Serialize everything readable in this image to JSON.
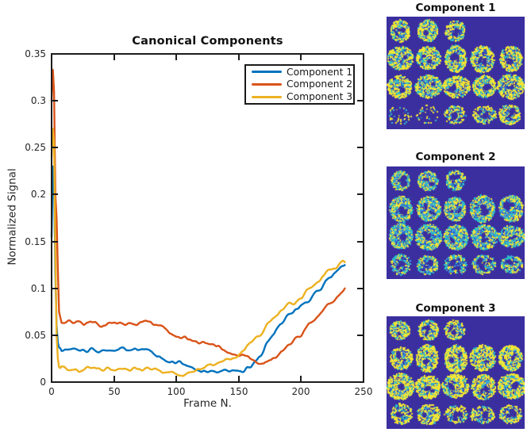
{
  "chart_data": {
    "type": "line",
    "title": "Canonical Components",
    "xlabel": "Frame N.",
    "ylabel": "Normalized Signal",
    "xlim": [
      0,
      250
    ],
    "ylim": [
      0,
      0.35
    ],
    "xticks": [
      0,
      50,
      100,
      150,
      200,
      250
    ],
    "xtick_labels": [
      "0",
      "50",
      "100",
      "150",
      "200",
      "250"
    ],
    "yticks": [
      0,
      0.05,
      0.1,
      0.15,
      0.2,
      0.25,
      0.3,
      0.35
    ],
    "ytick_labels": [
      "0",
      "0.05",
      "0.1",
      "0.15",
      "0.2",
      "0.25",
      "0.3",
      "0.35"
    ],
    "grid": false,
    "legend_position": "top-right-inside",
    "axis_color": "#1c1c1c",
    "text_color": "#262626",
    "series": [
      {
        "name": "Component 1",
        "color": "#0072BD",
        "x": [
          0,
          1,
          2,
          3,
          4,
          5,
          6,
          8,
          10,
          15,
          20,
          25,
          30,
          35,
          40,
          45,
          50,
          55,
          60,
          65,
          70,
          75,
          80,
          85,
          90,
          95,
          100,
          105,
          110,
          115,
          120,
          125,
          130,
          135,
          140,
          145,
          150,
          155,
          160,
          165,
          170,
          175,
          180,
          185,
          190,
          195,
          200,
          205,
          210,
          215,
          220,
          225,
          230,
          235
        ],
        "y": [
          0.155,
          0.23,
          0.22,
          0.12,
          0.06,
          0.042,
          0.037,
          0.035,
          0.034,
          0.0335,
          0.0345,
          0.033,
          0.0345,
          0.034,
          0.0335,
          0.035,
          0.034,
          0.0345,
          0.033,
          0.034,
          0.0345,
          0.034,
          0.031,
          0.028,
          0.0255,
          0.023,
          0.0205,
          0.018,
          0.016,
          0.0145,
          0.0135,
          0.0125,
          0.012,
          0.012,
          0.0125,
          0.013,
          0.0135,
          0.015,
          0.018,
          0.023,
          0.031,
          0.046,
          0.055,
          0.063,
          0.07,
          0.076,
          0.08,
          0.0855,
          0.092,
          0.0995,
          0.107,
          0.113,
          0.119,
          0.126
        ]
      },
      {
        "name": "Component 2",
        "color": "#D95319",
        "x": [
          0,
          1,
          2,
          3,
          4,
          5,
          6,
          8,
          10,
          15,
          20,
          25,
          30,
          35,
          40,
          45,
          50,
          55,
          60,
          65,
          70,
          75,
          80,
          85,
          90,
          95,
          100,
          105,
          110,
          115,
          120,
          125,
          130,
          135,
          140,
          145,
          150,
          155,
          160,
          165,
          170,
          175,
          180,
          185,
          190,
          195,
          200,
          205,
          210,
          215,
          220,
          225,
          230,
          235
        ],
        "y": [
          0.3,
          0.333,
          0.31,
          0.2,
          0.175,
          0.12,
          0.075,
          0.063,
          0.0625,
          0.063,
          0.0635,
          0.062,
          0.064,
          0.063,
          0.0625,
          0.0635,
          0.063,
          0.064,
          0.0625,
          0.063,
          0.0635,
          0.0625,
          0.0615,
          0.059,
          0.056,
          0.052,
          0.048,
          0.0455,
          0.044,
          0.0425,
          0.0415,
          0.04,
          0.0385,
          0.0365,
          0.0345,
          0.0325,
          0.03,
          0.0275,
          0.024,
          0.019,
          0.016,
          0.0225,
          0.027,
          0.033,
          0.04,
          0.046,
          0.052,
          0.058,
          0.064,
          0.071,
          0.077,
          0.084,
          0.092,
          0.1
        ]
      },
      {
        "name": "Component 3",
        "color": "#EDB120",
        "x": [
          0,
          1,
          2,
          3,
          4,
          5,
          6,
          8,
          10,
          15,
          20,
          25,
          30,
          35,
          40,
          45,
          50,
          55,
          60,
          65,
          70,
          75,
          80,
          85,
          90,
          95,
          100,
          105,
          110,
          115,
          120,
          125,
          130,
          135,
          140,
          145,
          150,
          155,
          160,
          165,
          170,
          175,
          180,
          185,
          190,
          195,
          200,
          205,
          210,
          215,
          220,
          225,
          230,
          235
        ],
        "y": [
          0.24,
          0.27,
          0.255,
          0.14,
          0.05,
          0.025,
          0.016,
          0.014,
          0.014,
          0.0135,
          0.0145,
          0.0135,
          0.014,
          0.0145,
          0.0135,
          0.014,
          0.0145,
          0.014,
          0.0135,
          0.014,
          0.0145,
          0.014,
          0.013,
          0.012,
          0.011,
          0.0105,
          0.0105,
          0.011,
          0.012,
          0.0135,
          0.0155,
          0.018,
          0.0205,
          0.023,
          0.026,
          0.029,
          0.031,
          0.034,
          0.041,
          0.048,
          0.056,
          0.064,
          0.071,
          0.0765,
          0.081,
          0.085,
          0.089,
          0.097,
          0.104,
          0.11,
          0.116,
          0.121,
          0.125,
          0.128
        ]
      }
    ]
  },
  "panels": [
    {
      "title": "Component 1"
    },
    {
      "title": "Component 2"
    },
    {
      "title": "Component 3"
    }
  ],
  "panel_style": {
    "background": "#3B2FA0",
    "palette": [
      "#F2E534",
      "#2DBEC6",
      "#3F9BDC",
      "#2E4FC8"
    ],
    "montage_grid": "rows of 3,5,5,5 axial slices"
  }
}
